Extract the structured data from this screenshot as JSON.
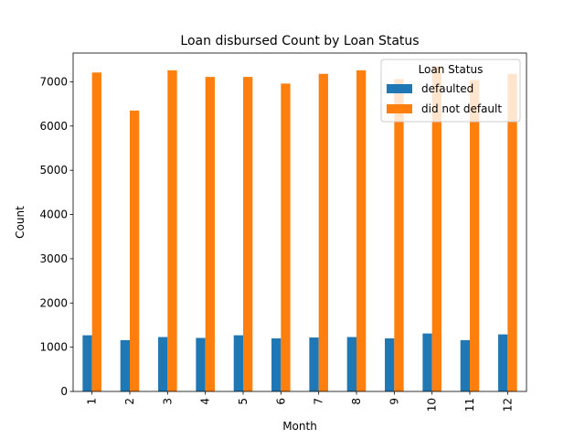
{
  "chart_data": {
    "type": "bar",
    "title": "Loan disbursed Count by Loan Status",
    "xlabel": "Month",
    "ylabel": "Count",
    "categories": [
      "1",
      "2",
      "3",
      "4",
      "5",
      "6",
      "7",
      "8",
      "9",
      "10",
      "11",
      "12"
    ],
    "ylim": [
      0,
      7650
    ],
    "yticks": [
      0,
      1000,
      2000,
      3000,
      4000,
      5000,
      6000,
      7000
    ],
    "legend": {
      "title": "Loan Status",
      "placement": "upper right"
    },
    "series": [
      {
        "name": "defaulted",
        "color": "#1f77b4",
        "values": [
          1270,
          1160,
          1230,
          1210,
          1270,
          1200,
          1220,
          1230,
          1200,
          1310,
          1160,
          1290
        ]
      },
      {
        "name": "did not default",
        "color": "#ff7f0e",
        "values": [
          7210,
          6350,
          7260,
          7110,
          7110,
          6960,
          7180,
          7260,
          7060,
          7350,
          7040,
          7180
        ]
      }
    ]
  }
}
